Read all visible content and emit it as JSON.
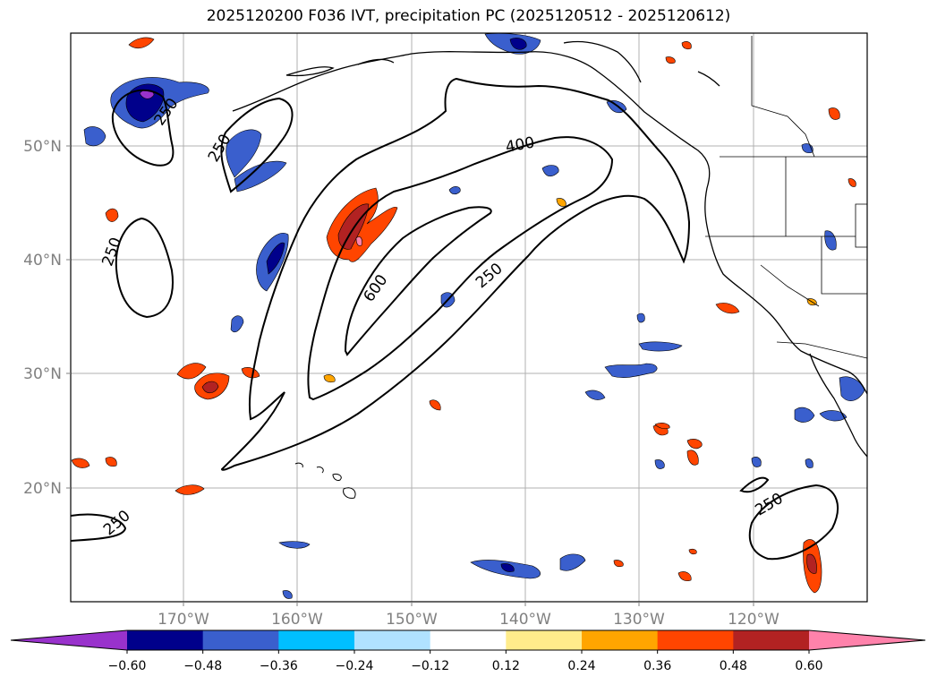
{
  "title": "2025120200 F036 IVT, precipitation PC (2025120512 - 2025120612)",
  "lat_labels": [
    "50°N",
    "40°N",
    "30°N",
    "20°N"
  ],
  "lon_labels": [
    "170°W",
    "160°W",
    "150°W",
    "140°W",
    "130°W",
    "120°W"
  ],
  "contour_labels": [
    "250",
    "250",
    "250",
    "250",
    "250",
    "250",
    "400",
    "600"
  ],
  "colorbar": {
    "ticks": [
      "−0.60",
      "−0.48",
      "−0.36",
      "−0.24",
      "−0.12",
      "0.12",
      "0.24",
      "0.36",
      "0.48",
      "0.60"
    ],
    "colors": [
      "#9932cc",
      "#00008b",
      "#3a5fcd",
      "#00bfff",
      "#b0e2ff",
      "#ffffff",
      "#ffec8b",
      "#ffa500",
      "#ff4500",
      "#b22222",
      "#ff82ab"
    ]
  }
}
